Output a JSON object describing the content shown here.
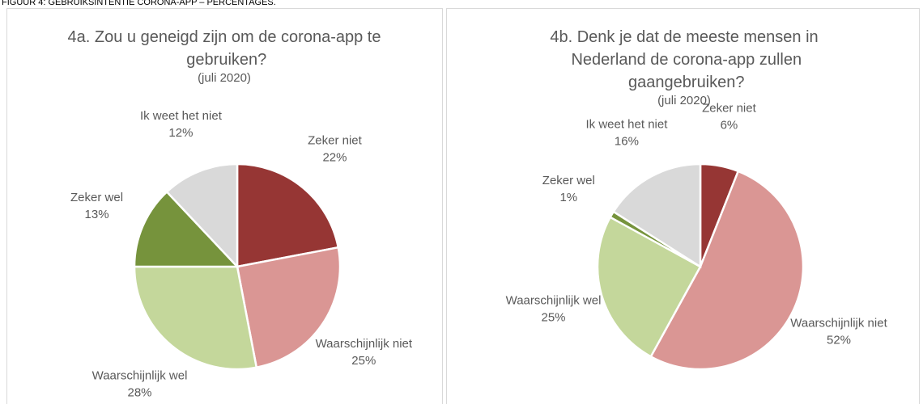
{
  "caption": "FIGUUR 4: GEBRUIKSINTENTIE CORONA-APP – PERCENTAGES.",
  "chart_data": [
    {
      "type": "pie",
      "title": "4a. Zou u geneigd zijn om de corona-app te gebruiken?",
      "subtitle": "(juli 2020)",
      "categories": [
        "Zeker niet",
        "Waarschijnlijk niet",
        "Waarschijnlijk wel",
        "Zeker wel",
        "Ik weet het niet"
      ],
      "values": [
        22,
        25,
        28,
        13,
        12
      ],
      "value_labels": [
        "22%",
        "25%",
        "28%",
        "13%",
        "12%"
      ],
      "colors": [
        "#963634",
        "#da9694",
        "#c4d79b",
        "#76933c",
        "#d9d9d9"
      ]
    },
    {
      "type": "pie",
      "title": "4b. Denk je dat de meeste mensen in Nederland de corona-app zullen gaangebruiken?",
      "subtitle": "(juli 2020)",
      "categories": [
        "Zeker niet",
        "Waarschijnlijk niet",
        "Waarschijnlijk wel",
        "Zeker wel",
        "Ik weet het niet"
      ],
      "values": [
        6,
        52,
        25,
        1,
        16
      ],
      "value_labels": [
        "6%",
        "52%",
        "25%",
        "1%",
        "16%"
      ],
      "colors": [
        "#963634",
        "#da9694",
        "#c4d79b",
        "#76933c",
        "#d9d9d9"
      ]
    }
  ]
}
